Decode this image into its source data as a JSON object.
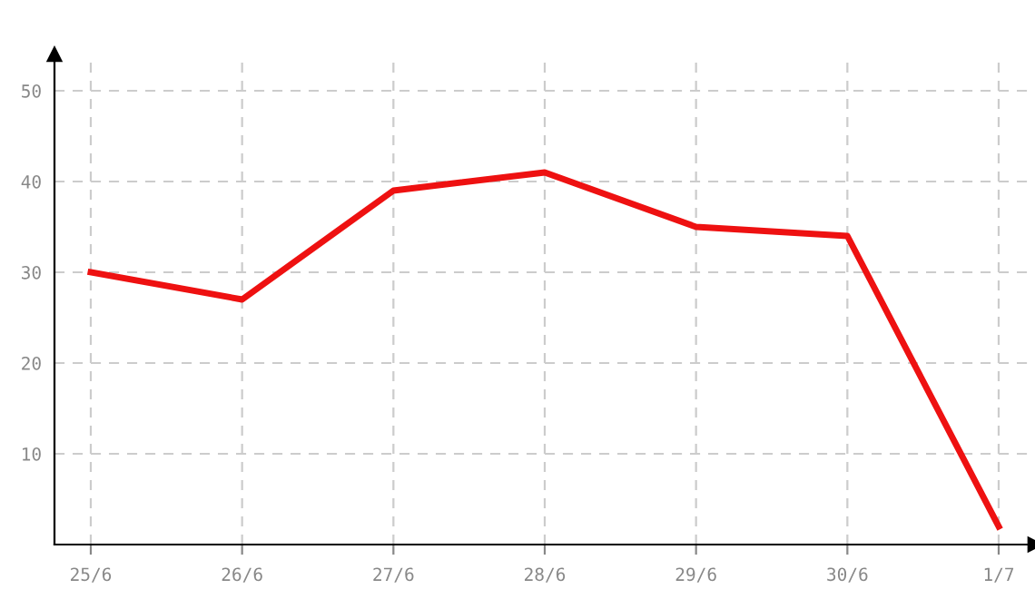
{
  "chart_data": {
    "type": "line",
    "categories": [
      "25/6",
      "26/6",
      "27/6",
      "28/6",
      "29/6",
      "30/6",
      "1/7"
    ],
    "series": [
      {
        "color": "#ee1111",
        "values": [
          30,
          27,
          39,
          41,
          35,
          34,
          2
        ]
      }
    ],
    "ylim": [
      0,
      54
    ],
    "yticks": [
      10,
      20,
      30,
      40,
      50
    ],
    "grid": true,
    "marker": "none",
    "line_style": "solid"
  }
}
